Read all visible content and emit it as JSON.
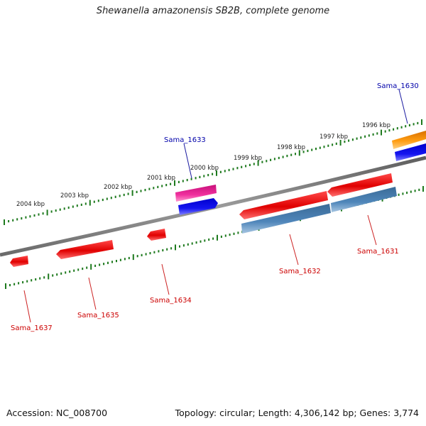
{
  "title": "Shewanella amazonensis SB2B, complete genome",
  "footer": {
    "accession": "Accession: NC_008700",
    "topology": "Topology: circular; Length: 4,306,142 bp; Genes: 3,774"
  },
  "colors": {
    "backbone": "#7f7f7f",
    "ticks": "#1e7a1e",
    "gene_red": "#ee1111",
    "gene_blue": "#1010ee",
    "gene_steel": "#4a7fb0",
    "gene_pink": "#ee2a9a",
    "gene_orange": "#ff9a10",
    "label_red": "#cc0000",
    "label_blue": "#0000aa"
  },
  "tick_labels": [
    {
      "id": "2004",
      "text": "2004 kbp"
    },
    {
      "id": "2003",
      "text": "2003 kbp"
    },
    {
      "id": "2002",
      "text": "2002 kbp"
    },
    {
      "id": "2001",
      "text": "2001 kbp"
    },
    {
      "id": "2000",
      "text": "2000 kbp"
    },
    {
      "id": "1999",
      "text": "1999 kbp"
    },
    {
      "id": "1998",
      "text": "1998 kbp"
    },
    {
      "id": "1997",
      "text": "1997 kbp"
    },
    {
      "id": "1996",
      "text": "1996 kbp"
    }
  ],
  "gene_labels": [
    {
      "id": "sama-1630",
      "text": "Sama_1630",
      "color": "blue"
    },
    {
      "id": "sama-1631",
      "text": "Sama_1631",
      "color": "red"
    },
    {
      "id": "sama-1632",
      "text": "Sama_1632",
      "color": "red"
    },
    {
      "id": "sama-1633",
      "text": "Sama_1633",
      "color": "blue"
    },
    {
      "id": "sama-1634",
      "text": "Sama_1634",
      "color": "red"
    },
    {
      "id": "sama-1635",
      "text": "Sama_1635",
      "color": "red"
    },
    {
      "id": "sama-1637",
      "text": "Sama_1637",
      "color": "red"
    }
  ]
}
